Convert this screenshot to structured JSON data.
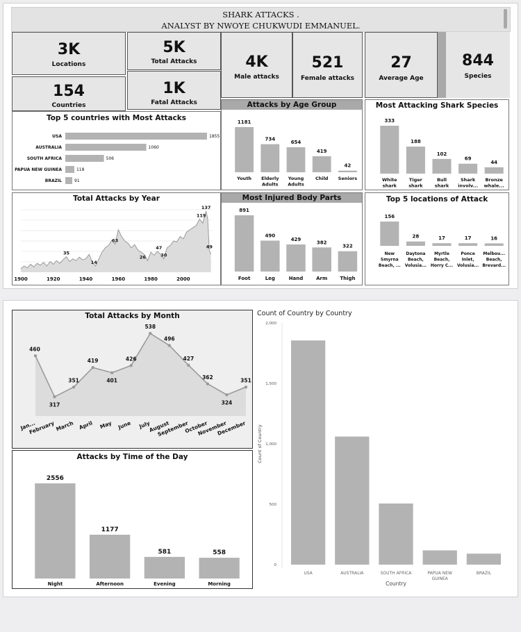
{
  "header": {
    "title_line1": "SHARK ATTACKS .",
    "title_line2": "ANALYST BY NWOYE CHUKWUDI EMMANUEL."
  },
  "kpis": {
    "locations": {
      "value": "3K",
      "label": "Locations"
    },
    "total_attacks": {
      "value": "5K",
      "label": "Total Attacks"
    },
    "male": {
      "value": "4K",
      "label": "Male attacks"
    },
    "female": {
      "value": "521",
      "label": "Female attacks"
    },
    "avg_age": {
      "value": "27",
      "label": "Average Age"
    },
    "species": {
      "value": "844",
      "label": "Species"
    },
    "countries": {
      "value": "154",
      "label": "Countries"
    },
    "fatal": {
      "value": "1K",
      "label": "Fatal Attacks"
    }
  },
  "colors": {
    "bar": "#b3b3b3",
    "kpi_bg": "#e6e6e6",
    "title_bar": "#a9a9a9",
    "line": "#9a9a9a",
    "area": "#dcdcdc"
  },
  "chart_data": [
    {
      "id": "top5_countries",
      "type": "bar",
      "orientation": "horizontal",
      "title": "Top 5 countries with Most Attacks",
      "categories": [
        "USA",
        "AUSTRALIA",
        "SOUTH AFRICA",
        "PAPUA NEW GUINEA",
        "BRAZIL"
      ],
      "values": [
        1855,
        1060,
        506,
        118,
        91
      ]
    },
    {
      "id": "age_group",
      "type": "bar",
      "title": "Attacks by Age Group",
      "categories": [
        [
          "Youth"
        ],
        [
          "Elderly",
          "Adults"
        ],
        [
          "Young",
          "Adults"
        ],
        [
          "Child"
        ],
        [
          "Seniors"
        ]
      ],
      "values": [
        1181,
        734,
        654,
        419,
        42
      ]
    },
    {
      "id": "species",
      "type": "bar",
      "title": "Most Attacking Shark Species",
      "categories": [
        [
          "White",
          "shark"
        ],
        [
          "Tiger",
          "shark"
        ],
        [
          "Bull",
          "shark"
        ],
        [
          "Shark",
          "involv..."
        ],
        [
          "Bronze",
          "whale..."
        ]
      ],
      "values": [
        333,
        188,
        102,
        69,
        44
      ]
    },
    {
      "id": "by_year",
      "type": "area",
      "title": "Total Attacks by Year",
      "x_ticks": [
        "1900",
        "1920",
        "1940",
        "1960",
        "1980",
        "2000"
      ],
      "xlim": [
        1900,
        2018
      ],
      "ylim": [
        0,
        140
      ],
      "labels": [
        {
          "x": 1928,
          "y": 35,
          "text": "35"
        },
        {
          "x": 1945,
          "y": 14,
          "text": "14"
        },
        {
          "x": 1958,
          "y": 63,
          "text": "63"
        },
        {
          "x": 1975,
          "y": 26,
          "text": "26"
        },
        {
          "x": 1985,
          "y": 47,
          "text": "47"
        },
        {
          "x": 1988,
          "y": 30,
          "text": "30"
        },
        {
          "x": 2011,
          "y": 119,
          "text": "119"
        },
        {
          "x": 2014,
          "y": 137,
          "text": "137"
        },
        {
          "x": 2016,
          "y": 49,
          "text": "49"
        }
      ],
      "x": [
        1900,
        1902,
        1904,
        1906,
        1908,
        1910,
        1912,
        1914,
        1916,
        1918,
        1920,
        1922,
        1924,
        1926,
        1928,
        1930,
        1932,
        1934,
        1936,
        1938,
        1940,
        1942,
        1944,
        1946,
        1948,
        1950,
        1952,
        1954,
        1956,
        1958,
        1960,
        1962,
        1964,
        1966,
        1968,
        1970,
        1972,
        1974,
        1976,
        1978,
        1980,
        1982,
        1984,
        1986,
        1988,
        1990,
        1992,
        1994,
        1996,
        1998,
        2000,
        2002,
        2004,
        2006,
        2008,
        2010,
        2012,
        2014,
        2015,
        2016,
        2017
      ],
      "values": [
        8,
        14,
        10,
        18,
        12,
        20,
        16,
        22,
        14,
        24,
        18,
        26,
        20,
        28,
        35,
        24,
        30,
        26,
        34,
        28,
        30,
        40,
        22,
        14,
        30,
        45,
        55,
        60,
        72,
        63,
        95,
        80,
        70,
        65,
        55,
        62,
        50,
        45,
        40,
        26,
        45,
        38,
        47,
        40,
        30,
        55,
        60,
        70,
        68,
        80,
        75,
        90,
        95,
        100,
        105,
        119,
        110,
        137,
        120,
        49,
        40
      ]
    },
    {
      "id": "body_parts",
      "type": "bar",
      "title": "Most Injured Body Parts",
      "categories": [
        [
          "Foot"
        ],
        [
          "Leg"
        ],
        [
          "Hand"
        ],
        [
          "Arm"
        ],
        [
          "Thigh"
        ]
      ],
      "values": [
        891,
        490,
        429,
        382,
        322
      ]
    },
    {
      "id": "locations",
      "type": "bar",
      "title": "Top 5 locations of Attack",
      "categories": [
        [
          "New",
          "Smyrna",
          "Beach, ..."
        ],
        [
          "Daytona",
          "Beach,",
          "Volusia..."
        ],
        [
          "Myrtle",
          "Beach,",
          "Horry C..."
        ],
        [
          "Ponce",
          "Inlet,",
          "Volusia..."
        ],
        [
          "Melbou...",
          "Beach,",
          "Brevard..."
        ]
      ],
      "values": [
        156,
        28,
        17,
        17,
        16
      ]
    },
    {
      "id": "by_month",
      "type": "area",
      "title": "Total Attacks by Month",
      "categories": [
        "Jan...",
        "February",
        "March",
        "April",
        "May",
        "June",
        "July",
        "August",
        "September",
        "October",
        "November",
        "December"
      ],
      "values": [
        460,
        317,
        351,
        419,
        401,
        426,
        538,
        496,
        427,
        362,
        324,
        351
      ]
    },
    {
      "id": "time_of_day",
      "type": "bar",
      "title": "Attacks by Time of the Day",
      "categories": [
        "Night",
        "Afternoon",
        "Evening",
        "Morning"
      ],
      "values": [
        2556,
        1177,
        581,
        558
      ]
    },
    {
      "id": "country_count",
      "type": "bar",
      "title": "Count of Country by Country",
      "xlabel": "Country",
      "ylabel": "Count of Country",
      "ylim": [
        0,
        2000
      ],
      "y_ticks": [
        "0",
        "500",
        "1,000",
        "1,500",
        "2,000"
      ],
      "categories": [
        [
          "USA"
        ],
        [
          "AUSTRALIA"
        ],
        [
          "SOUTH AFRICA"
        ],
        [
          "PAPUA NEW",
          "GUINEA"
        ],
        [
          "BRAZIL"
        ]
      ],
      "values": [
        1855,
        1060,
        506,
        118,
        91
      ]
    }
  ]
}
